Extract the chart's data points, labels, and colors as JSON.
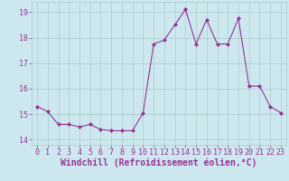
{
  "x": [
    0,
    1,
    2,
    3,
    4,
    5,
    6,
    7,
    8,
    9,
    10,
    11,
    12,
    13,
    14,
    15,
    16,
    17,
    18,
    19,
    20,
    21,
    22,
    23
  ],
  "y": [
    15.3,
    15.1,
    14.6,
    14.6,
    14.5,
    14.6,
    14.4,
    14.35,
    14.35,
    14.35,
    15.05,
    17.75,
    17.9,
    18.5,
    19.1,
    17.75,
    18.7,
    17.75,
    17.75,
    18.75,
    16.1,
    16.1,
    15.3,
    15.05
  ],
  "line_color": "#993399",
  "marker": "D",
  "markersize": 2.0,
  "linewidth": 0.8,
  "xlabel": "Windchill (Refroidissement éolien,°C)",
  "xlim": [
    -0.5,
    23.5
  ],
  "ylim": [
    13.8,
    19.4
  ],
  "yticks": [
    14,
    15,
    16,
    17,
    18,
    19
  ],
  "xticks": [
    0,
    1,
    2,
    3,
    4,
    5,
    6,
    7,
    8,
    9,
    10,
    11,
    12,
    13,
    14,
    15,
    16,
    17,
    18,
    19,
    20,
    21,
    22,
    23
  ],
  "bg_color": "#cce8ee",
  "grid_color": "#aacccc",
  "tick_label_fontsize": 6.0,
  "xlabel_fontsize": 7.0,
  "line_purple": "#883388"
}
